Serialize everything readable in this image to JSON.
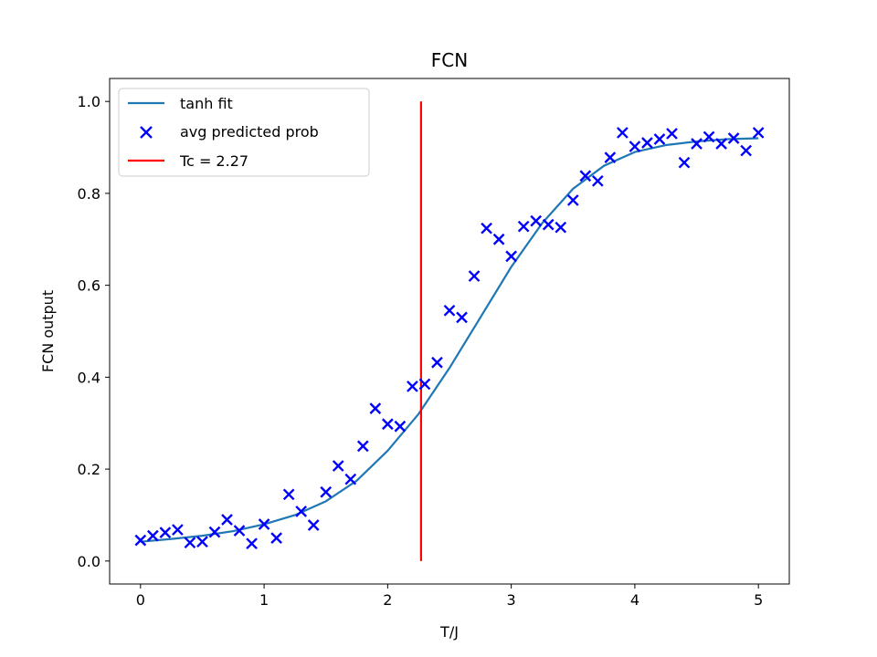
{
  "chart_data": {
    "type": "scatter",
    "title": "FCN",
    "xlabel": "T/J",
    "ylabel": "FCN output",
    "xlim": [
      -0.25,
      5.25
    ],
    "ylim": [
      -0.05,
      1.05
    ],
    "xticks": [
      0,
      1,
      2,
      3,
      4,
      5
    ],
    "yticks": [
      0.0,
      0.2,
      0.4,
      0.6,
      0.8,
      1.0
    ],
    "xtick_labels": [
      "0",
      "1",
      "2",
      "3",
      "4",
      "5"
    ],
    "ytick_labels": [
      "0.0",
      "0.2",
      "0.4",
      "0.6",
      "0.8",
      "1.0"
    ],
    "grid": false,
    "legend_position": "top-left",
    "series": [
      {
        "name": "tanh fit",
        "kind": "line",
        "color": "#1f77b4",
        "x": [
          0,
          0.25,
          0.5,
          0.75,
          1.0,
          1.25,
          1.5,
          1.75,
          2.0,
          2.25,
          2.5,
          2.75,
          3.0,
          3.25,
          3.5,
          3.75,
          4.0,
          4.25,
          4.5,
          4.75,
          5.0
        ],
        "y": [
          0.042,
          0.048,
          0.055,
          0.065,
          0.08,
          0.1,
          0.13,
          0.175,
          0.24,
          0.32,
          0.42,
          0.53,
          0.64,
          0.735,
          0.81,
          0.86,
          0.89,
          0.905,
          0.913,
          0.918,
          0.92
        ]
      },
      {
        "name": "avg predicted prob",
        "kind": "scatter",
        "marker": "x",
        "color": "#0000ff",
        "x": [
          0.0,
          0.1,
          0.2,
          0.3,
          0.4,
          0.5,
          0.6,
          0.7,
          0.8,
          0.9,
          1.0,
          1.1,
          1.2,
          1.3,
          1.4,
          1.5,
          1.6,
          1.7,
          1.8,
          1.9,
          2.0,
          2.1,
          2.2,
          2.3,
          2.4,
          2.5,
          2.6,
          2.7,
          2.8,
          2.9,
          3.0,
          3.1,
          3.2,
          3.3,
          3.4,
          3.5,
          3.6,
          3.7,
          3.8,
          3.9,
          4.0,
          4.1,
          4.2,
          4.3,
          4.4,
          4.5,
          4.6,
          4.7,
          4.8,
          4.9,
          5.0
        ],
        "y": [
          0.045,
          0.055,
          0.062,
          0.068,
          0.04,
          0.042,
          0.063,
          0.09,
          0.066,
          0.038,
          0.08,
          0.05,
          0.145,
          0.108,
          0.078,
          0.15,
          0.207,
          0.178,
          0.25,
          0.332,
          0.298,
          0.293,
          0.38,
          0.385,
          0.432,
          0.545,
          0.53,
          0.62,
          0.724,
          0.7,
          0.663,
          0.728,
          0.74,
          0.732,
          0.726,
          0.785,
          0.838,
          0.827,
          0.878,
          0.932,
          0.902,
          0.91,
          0.918,
          0.93,
          0.867,
          0.908,
          0.923,
          0.908,
          0.92,
          0.893,
          0.932
        ]
      },
      {
        "name": "Tc = 2.27",
        "kind": "vline",
        "color": "#ff0000",
        "x": 2.27,
        "ymin": 0.0,
        "ymax": 1.0
      }
    ]
  },
  "legend": {
    "fit_label": "tanh fit",
    "scatter_label": "avg predicted prob",
    "tc_label": "Tc = 2.27"
  }
}
